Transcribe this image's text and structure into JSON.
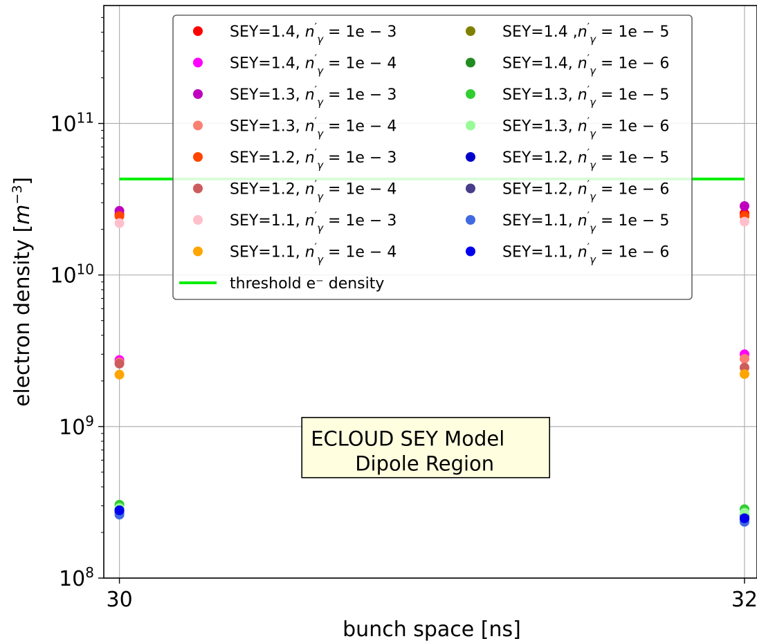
{
  "chart_data": {
    "type": "scatter",
    "xlabel": "bunch space [ns]",
    "ylabel": "electron density [m⁻³]",
    "xlim": [
      29.95,
      32.04
    ],
    "ylim": [
      100000000.0,
      600000000000.0
    ],
    "y_scale": "log",
    "grid": true,
    "x_ticks": [
      {
        "value": 30,
        "label": "30"
      },
      {
        "value": 32,
        "label": "32"
      }
    ],
    "y_ticks": [
      {
        "value": 100000000.0,
        "base": "10",
        "exp": "8"
      },
      {
        "value": 1000000000.0,
        "base": "10",
        "exp": "9"
      },
      {
        "value": 10000000000.0,
        "base": "10",
        "exp": "10"
      },
      {
        "value": 100000000000.0,
        "base": "10",
        "exp": "11"
      }
    ],
    "legend_position": "top",
    "series": [
      {
        "sey": "1.4",
        "n": "1e − 3",
        "sep": ", ",
        "color": "#ff0000",
        "x": [
          30,
          32
        ],
        "y": [
          25000000000.0,
          25500000000.0
        ]
      },
      {
        "sey": "1.4",
        "n": "1e − 4",
        "sep": ", ",
        "color": "#ff00ff",
        "x": [
          30,
          32
        ],
        "y": [
          2750000000.0,
          3000000000.0
        ]
      },
      {
        "sey": "1.3",
        "n": "1e − 3",
        "sep": ", ",
        "color": "#bf00bf",
        "x": [
          30,
          32
        ],
        "y": [
          26500000000.0,
          28500000000.0
        ]
      },
      {
        "sey": "1.3",
        "n": "1e − 4",
        "sep": ", ",
        "color": "#fa8072",
        "x": [
          30,
          32
        ],
        "y": [
          2650000000.0,
          2800000000.0
        ]
      },
      {
        "sey": "1.2",
        "n": "1e − 3",
        "sep": ", ",
        "color": "#ff4500",
        "x": [
          30,
          32
        ],
        "y": [
          24500000000.0,
          24500000000.0
        ]
      },
      {
        "sey": "1.2",
        "n": "1e − 4",
        "sep": ", ",
        "color": "#cd5c5c",
        "x": [
          30,
          32
        ],
        "y": [
          2600000000.0,
          2450000000.0
        ]
      },
      {
        "sey": "1.1",
        "n": "1e − 3",
        "sep": ", ",
        "color": "#ffc0cb",
        "x": [
          30,
          32
        ],
        "y": [
          22000000000.0,
          22500000000.0
        ]
      },
      {
        "sey": "1.1",
        "n": "1e − 4",
        "sep": ", ",
        "color": "#ffa500",
        "x": [
          30,
          32
        ],
        "y": [
          2200000000.0,
          2220000000.0
        ]
      },
      {
        "sey": "1.4",
        "n": "1e − 5",
        "sep": " ,",
        "color": "#808000",
        "x": [
          30,
          32
        ],
        "y": [
          275000000.0,
          255000000.0
        ]
      },
      {
        "sey": "1.4",
        "n": "1e − 6",
        "sep": ", ",
        "color": "#228b22",
        "x": [
          30,
          32
        ],
        "y": [
          280000000.0,
          260000000.0
        ]
      },
      {
        "sey": "1.3",
        "n": "1e − 5",
        "sep": ", ",
        "color": "#32cd32",
        "x": [
          30,
          32
        ],
        "y": [
          305000000.0,
          285000000.0
        ]
      },
      {
        "sey": "1.3",
        "n": "1e − 6",
        "sep": ", ",
        "color": "#98fb98",
        "x": [
          30,
          32
        ],
        "y": [
          290000000.0,
          270000000.0
        ]
      },
      {
        "sey": "1.2",
        "n": "1e − 5",
        "sep": ", ",
        "color": "#0000cd",
        "x": [
          30,
          32
        ],
        "y": [
          280000000.0,
          248000000.0
        ]
      },
      {
        "sey": "1.2",
        "n": "1e − 6",
        "sep": ", ",
        "color": "#483d8b",
        "x": [
          30,
          32
        ],
        "y": [
          272000000.0,
          245000000.0
        ]
      },
      {
        "sey": "1.1",
        "n": "1e − 5",
        "sep": ", ",
        "color": "#4169e1",
        "x": [
          30,
          32
        ],
        "y": [
          262000000.0,
          235000000.0
        ]
      },
      {
        "sey": "1.1",
        "n": "1e − 6",
        "sep": ", ",
        "color": "#0000ee",
        "x": [
          30,
          32
        ],
        "y": [
          280000000.0,
          248000000.0
        ]
      }
    ],
    "threshold": {
      "label": "threshold e⁻ density",
      "value": 43000000000.0,
      "color": "#00ee00",
      "x": [
        30,
        32
      ]
    },
    "annotation": {
      "lines": [
        "ECLOUD SEY Model",
        "Dipole Region"
      ],
      "x": 30.98,
      "y": 550000000.0,
      "bg": "#ffffe0"
    }
  }
}
